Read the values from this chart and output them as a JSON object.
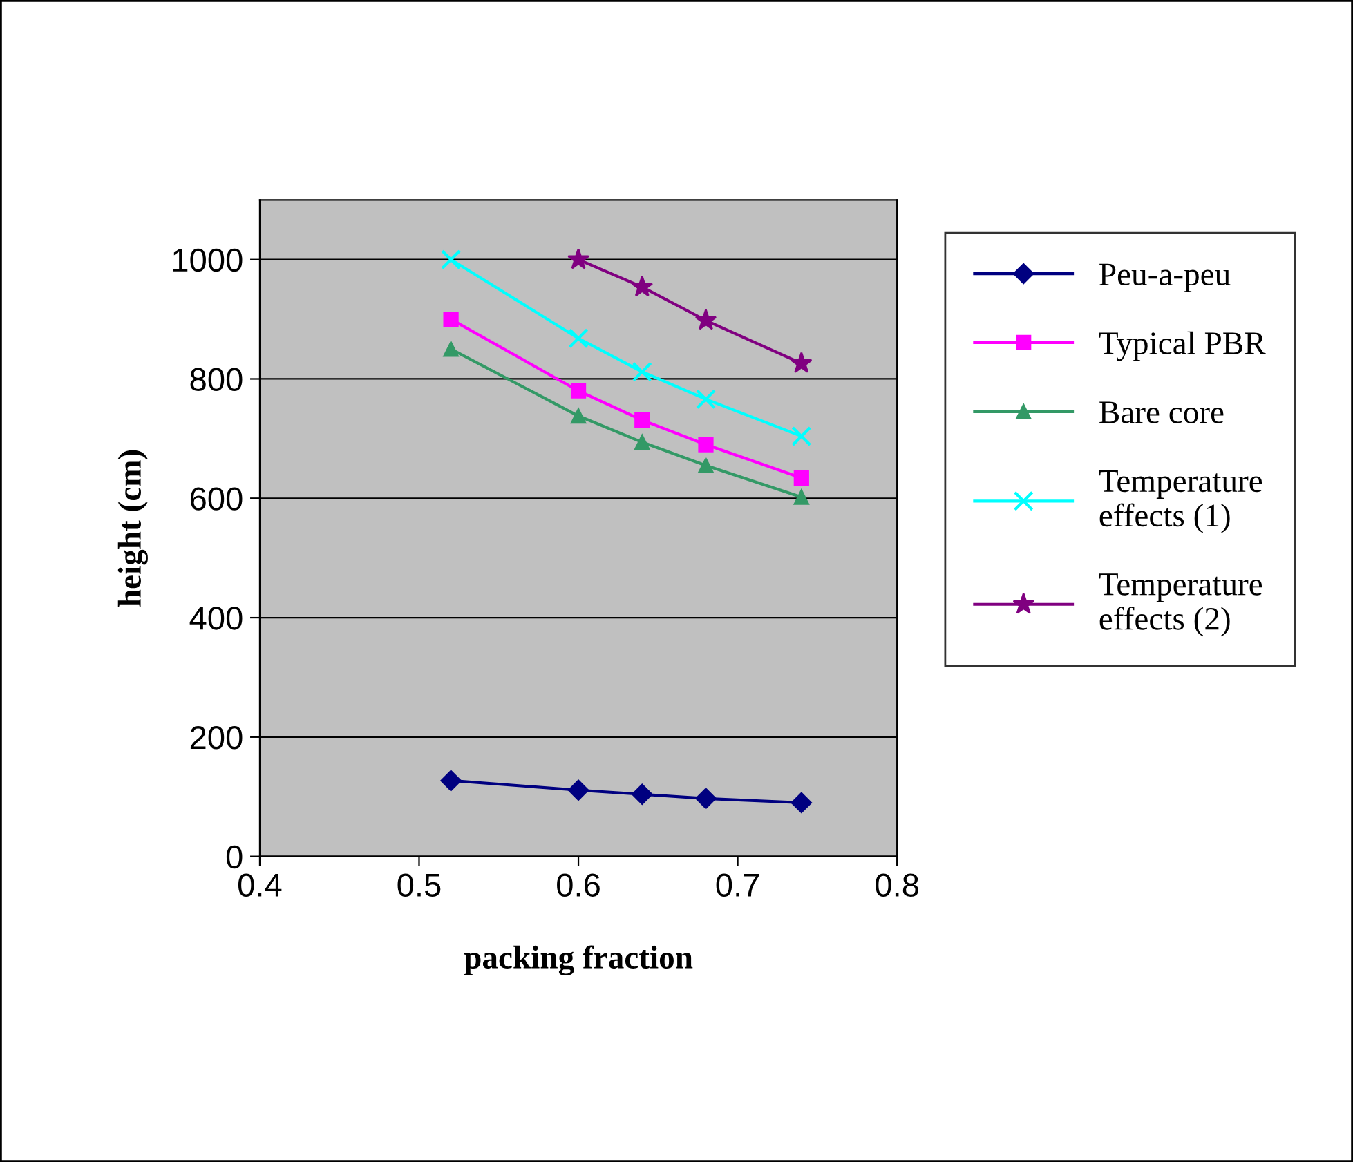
{
  "chart_data": {
    "type": "line",
    "xlabel": "packing fraction",
    "ylabel": "height (cm)",
    "xlim": [
      0.4,
      0.8
    ],
    "xticks": [
      {
        "value": 0.4,
        "label": "0.4"
      },
      {
        "value": 0.5,
        "label": "0.5"
      },
      {
        "value": 0.6,
        "label": "0.6"
      },
      {
        "value": 0.7,
        "label": "0.7"
      },
      {
        "value": 0.8,
        "label": "0.8"
      }
    ],
    "ylim": [
      0,
      1100
    ],
    "yticks": [
      0,
      200,
      400,
      600,
      800,
      1000
    ],
    "grid": "y",
    "legend": "right",
    "line_style": "solid",
    "series": [
      {
        "name": "Peu-a-peu",
        "color": "#000080",
        "marker": "diamond",
        "x": [
          0.52,
          0.6,
          0.64,
          0.68,
          0.74
        ],
        "values": [
          127,
          111,
          104,
          97,
          90
        ]
      },
      {
        "name": "Typical PBR",
        "color": "#ff00ff",
        "marker": "square",
        "x": [
          0.52,
          0.6,
          0.64,
          0.68,
          0.74
        ],
        "values": [
          900,
          780,
          731,
          690,
          634
        ]
      },
      {
        "name": "Bare core",
        "color": "#339966",
        "marker": "triangle",
        "x": [
          0.52,
          0.6,
          0.64,
          0.68,
          0.74
        ],
        "values": [
          850,
          738,
          694,
          655,
          602
        ]
      },
      {
        "name": "Temperature effects (1)",
        "color": "#00ffff",
        "marker": "cross",
        "x": [
          0.52,
          0.6,
          0.64,
          0.68,
          0.74
        ],
        "values": [
          1000,
          868,
          812,
          766,
          704
        ]
      },
      {
        "name": "Temperature effects (2)",
        "color": "#800080",
        "marker": "star",
        "x": [
          0.6,
          0.64,
          0.68,
          0.74
        ],
        "values": [
          1000,
          954,
          898,
          826
        ]
      }
    ]
  }
}
